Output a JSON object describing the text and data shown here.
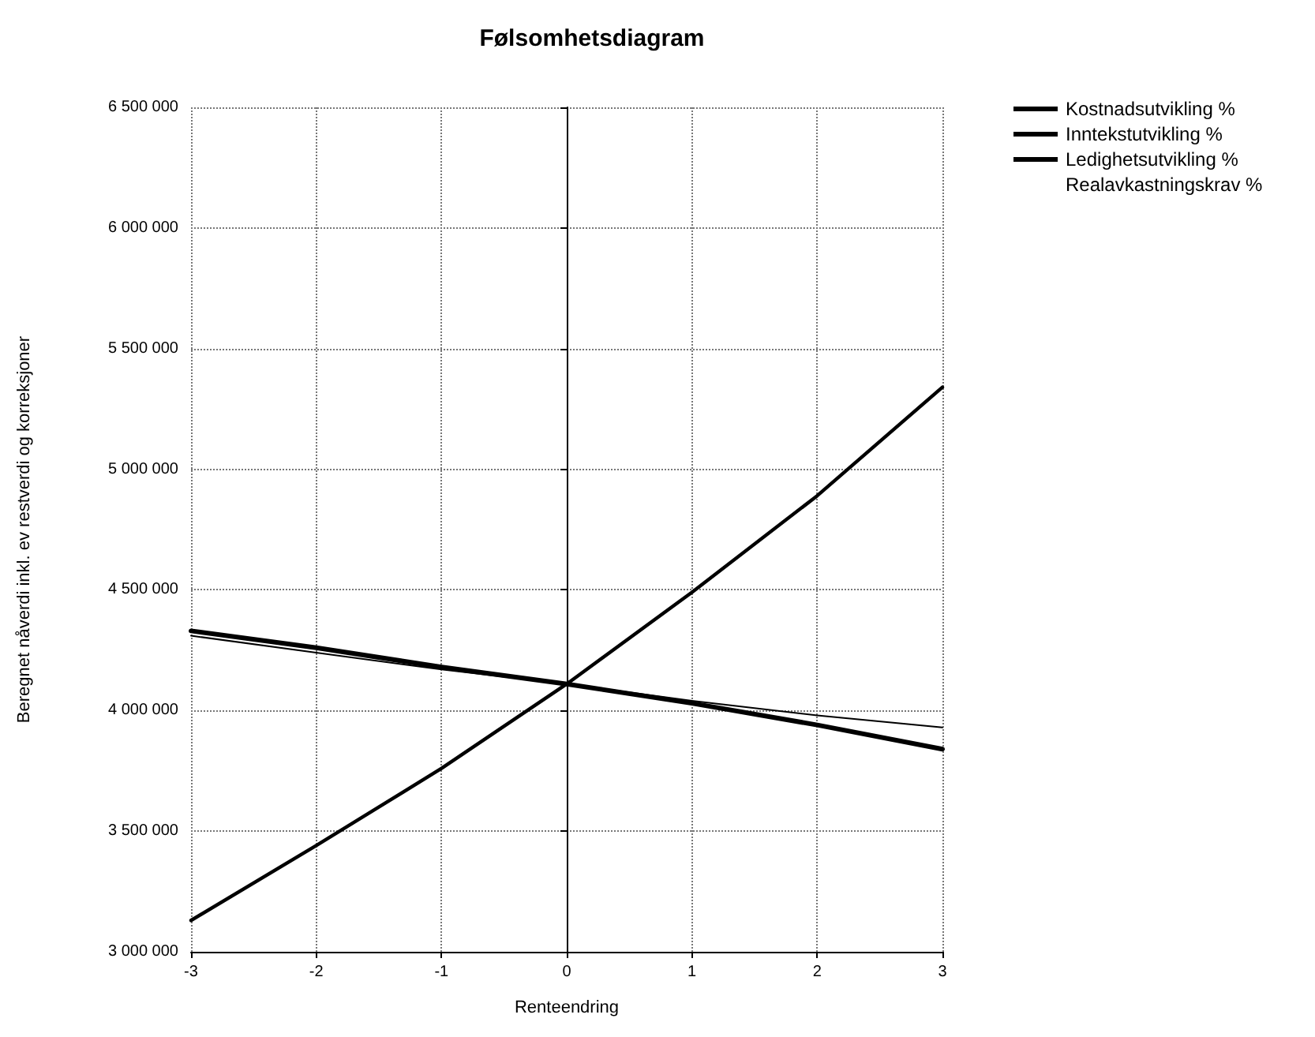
{
  "chart_data": {
    "type": "line",
    "title": "Følsomhetsdiagram",
    "xlabel": "Renteendring",
    "ylabel": "Beregnet nåverdi inkl. ev restverdi og korreksjoner",
    "x": [
      -3,
      -2,
      -1,
      0,
      1,
      2,
      3
    ],
    "series": [
      {
        "name": "Kostnadsutvikling %",
        "color": "#000000",
        "values": [
          4330000,
          4260000,
          4180000,
          4110000,
          4030000,
          3940000,
          3840000
        ]
      },
      {
        "name": "Inntekstutvikling %",
        "color": "#000000",
        "values": [
          3130000,
          3440000,
          3760000,
          4110000,
          4490000,
          4890000,
          5340000
        ]
      },
      {
        "name": "Ledighetsutvikling %",
        "color": "#000000",
        "values": [
          4310000,
          4240000,
          4170000,
          4110000,
          4040000,
          3980000,
          3930000
        ]
      },
      {
        "name": "Realavkastningskrav %",
        "color": null,
        "values": [
          null,
          null,
          null,
          null,
          null,
          null,
          null
        ]
      }
    ],
    "xlim": [
      -3,
      3
    ],
    "xticks": [
      -3,
      -2,
      -1,
      0,
      1,
      2,
      3
    ],
    "ylim": [
      3000000,
      6500000
    ],
    "yticks": [
      {
        "value": 3000000,
        "label": "3 000 000"
      },
      {
        "value": 3500000,
        "label": "3 500 000"
      },
      {
        "value": 4000000,
        "label": "4 000 000"
      },
      {
        "value": 4500000,
        "label": "4 500 000"
      },
      {
        "value": 5000000,
        "label": "5 000 000"
      },
      {
        "value": 5500000,
        "label": "5 500 000"
      },
      {
        "value": 6000000,
        "label": "6 000 000"
      },
      {
        "value": 6500000,
        "label": "6 500 000"
      }
    ],
    "grid": true,
    "legend": "top right",
    "marker": "none",
    "line_style": "solid"
  }
}
